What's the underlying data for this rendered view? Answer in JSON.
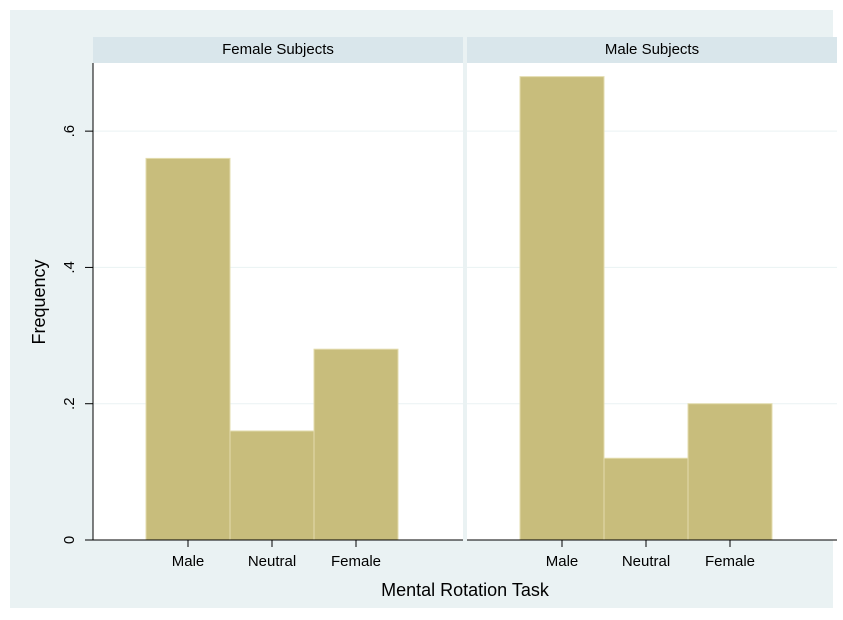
{
  "chart_data": {
    "type": "bar",
    "xlabel": "Mental Rotation Task",
    "ylabel": "Frequency",
    "categories": [
      "Male",
      "Neutral",
      "Female"
    ],
    "color": "#c8bd7c",
    "ylim": [
      0,
      0.7
    ],
    "yticks": [
      0,
      {
        "value": 0.2,
        "label": ".2"
      },
      {
        "value": 0.4,
        "label": ".4"
      },
      {
        "value": 0.6,
        "label": ".6"
      }
    ],
    "grid": true,
    "panels": [
      {
        "title": "Female Subjects",
        "values": [
          0.56,
          0.16,
          0.28
        ]
      },
      {
        "title": "Male Subjects",
        "values": [
          0.68,
          0.12,
          0.2
        ]
      }
    ]
  }
}
